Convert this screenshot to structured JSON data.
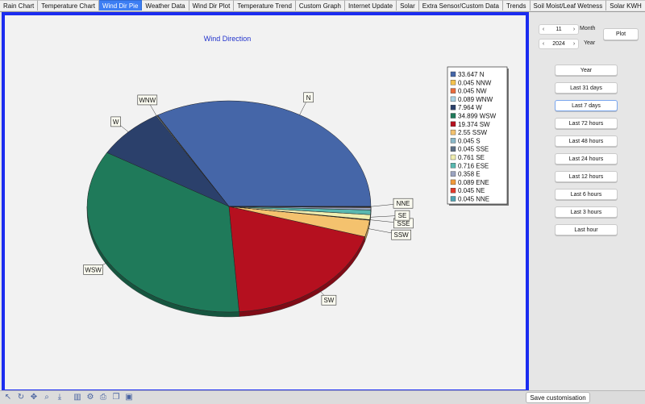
{
  "tabs": [
    {
      "label": "Rain Chart",
      "active": false
    },
    {
      "label": "Temperature Chart",
      "active": false
    },
    {
      "label": "Wind Dir Pie",
      "active": true
    },
    {
      "label": "Weather Data",
      "active": false
    },
    {
      "label": "Wind Dir Plot",
      "active": false
    },
    {
      "label": "Temperature Trend",
      "active": false
    },
    {
      "label": "Custom Graph",
      "active": false
    },
    {
      "label": "Internet Update",
      "active": false
    },
    {
      "label": "Solar",
      "active": false
    },
    {
      "label": "Extra Sensor/Custom Data",
      "active": false
    },
    {
      "label": "Trends",
      "active": false
    },
    {
      "label": "Soil Moist/Leaf Wetness",
      "active": false
    },
    {
      "label": "Solar KWH",
      "active": false
    }
  ],
  "controls": {
    "month_value": "11",
    "month_label": "Month",
    "year_value": "2024",
    "year_label": "Year",
    "plot_label": "Plot",
    "prev_arrow": "‹",
    "next_arrow": "›"
  },
  "range_buttons": [
    "Year",
    "Last 31 days",
    "Last 7 days",
    "Last 72 hours",
    "Last 48 hours",
    "Last 24 hours",
    "Last 12 hours",
    "Last 6 hours",
    "Last 3 hours",
    "Last hour"
  ],
  "bottom": {
    "save_label": "Save customisation"
  },
  "tool_icons": [
    "pointer-icon",
    "rotate-icon",
    "move-icon",
    "zoom-icon",
    "export-icon",
    "chart-icon",
    "settings-icon",
    "print-icon",
    "copy-icon",
    "save-icon"
  ],
  "chart_data": {
    "type": "pie",
    "title": "Wind Direction",
    "slices": [
      {
        "label": "N",
        "value": 33.647,
        "color": "#4566a8"
      },
      {
        "label": "NNW",
        "value": 0.045,
        "color": "#f4c24e"
      },
      {
        "label": "NW",
        "value": 0.045,
        "color": "#ea6b3c"
      },
      {
        "label": "WNW",
        "value": 0.089,
        "color": "#a9d3e6"
      },
      {
        "label": "W",
        "value": 7.964,
        "color": "#2b406b"
      },
      {
        "label": "WSW",
        "value": 34.899,
        "color": "#1f7a5a"
      },
      {
        "label": "SW",
        "value": 19.374,
        "color": "#b5101f"
      },
      {
        "label": "SSW",
        "value": 2.55,
        "color": "#f4c26e"
      },
      {
        "label": "S",
        "value": 0.045,
        "color": "#89b8c9"
      },
      {
        "label": "SSE",
        "value": 0.045,
        "color": "#5d6f85"
      },
      {
        "label": "SE",
        "value": 0.761,
        "color": "#f0eeb0"
      },
      {
        "label": "ESE",
        "value": 0.716,
        "color": "#59b8b0"
      },
      {
        "label": "E",
        "value": 0.358,
        "color": "#9aa3c0"
      },
      {
        "label": "ENE",
        "value": 0.089,
        "color": "#f29a3a"
      },
      {
        "label": "NE",
        "value": 0.045,
        "color": "#e23a2a"
      },
      {
        "label": "NNE",
        "value": 0.045,
        "color": "#4ea3b3"
      }
    ],
    "legend_entries": [
      "33.647 N",
      "0.045 NNW",
      "0.045 NW",
      "0.089 WNW",
      "7.964 W",
      "34.899 WSW",
      "19.374 SW",
      "2.55 SSW",
      "0.045 S",
      "0.045 SSE",
      "0.761 SE",
      "0.716 ESE",
      "0.358 E",
      "0.089 ENE",
      "0.045 NE",
      "0.045 NNE"
    ],
    "data_labels": [
      "N",
      "WNW",
      "W",
      "WSW",
      "SW",
      "SSW",
      "SE",
      "SSE",
      "NNE"
    ],
    "legend_position": "top-right"
  }
}
